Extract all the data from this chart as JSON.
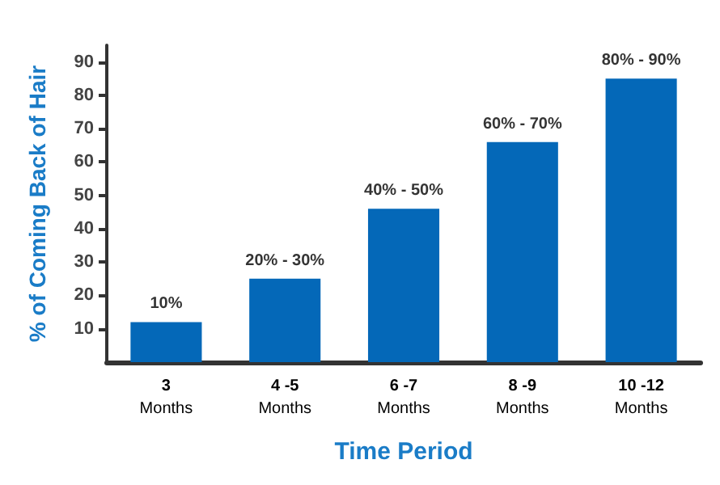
{
  "chart_data": {
    "type": "bar",
    "xlabel": "Time Period",
    "ylabel": "% of Coming Back of Hair",
    "categories": [
      "3\nMonths",
      "4 -5\nMonths",
      "6 -7\nMonths",
      "8 -9\nMonths",
      "10 -12\nMonths"
    ],
    "values": [
      12,
      25,
      46,
      66,
      85
    ],
    "color": "#0468b8",
    "annotations": [
      {
        "text": "10%",
        "x": "3\nMonths",
        "y": 12
      },
      {
        "text": "20% - 30%",
        "x": "4 -5\nMonths",
        "y": 25
      },
      {
        "text": "40% - 50%",
        "x": "6 -7\nMonths",
        "y": 46
      },
      {
        "text": "60% - 70%",
        "x": "8 -9\nMonths",
        "y": 66
      },
      {
        "text": "80% - 90%",
        "x": "10 -12\nMonths",
        "y": 85
      }
    ],
    "ylim": [
      0,
      95
    ],
    "yticks": [
      10,
      20,
      30,
      40,
      50,
      60,
      70,
      80,
      90
    ],
    "grid": false
  }
}
